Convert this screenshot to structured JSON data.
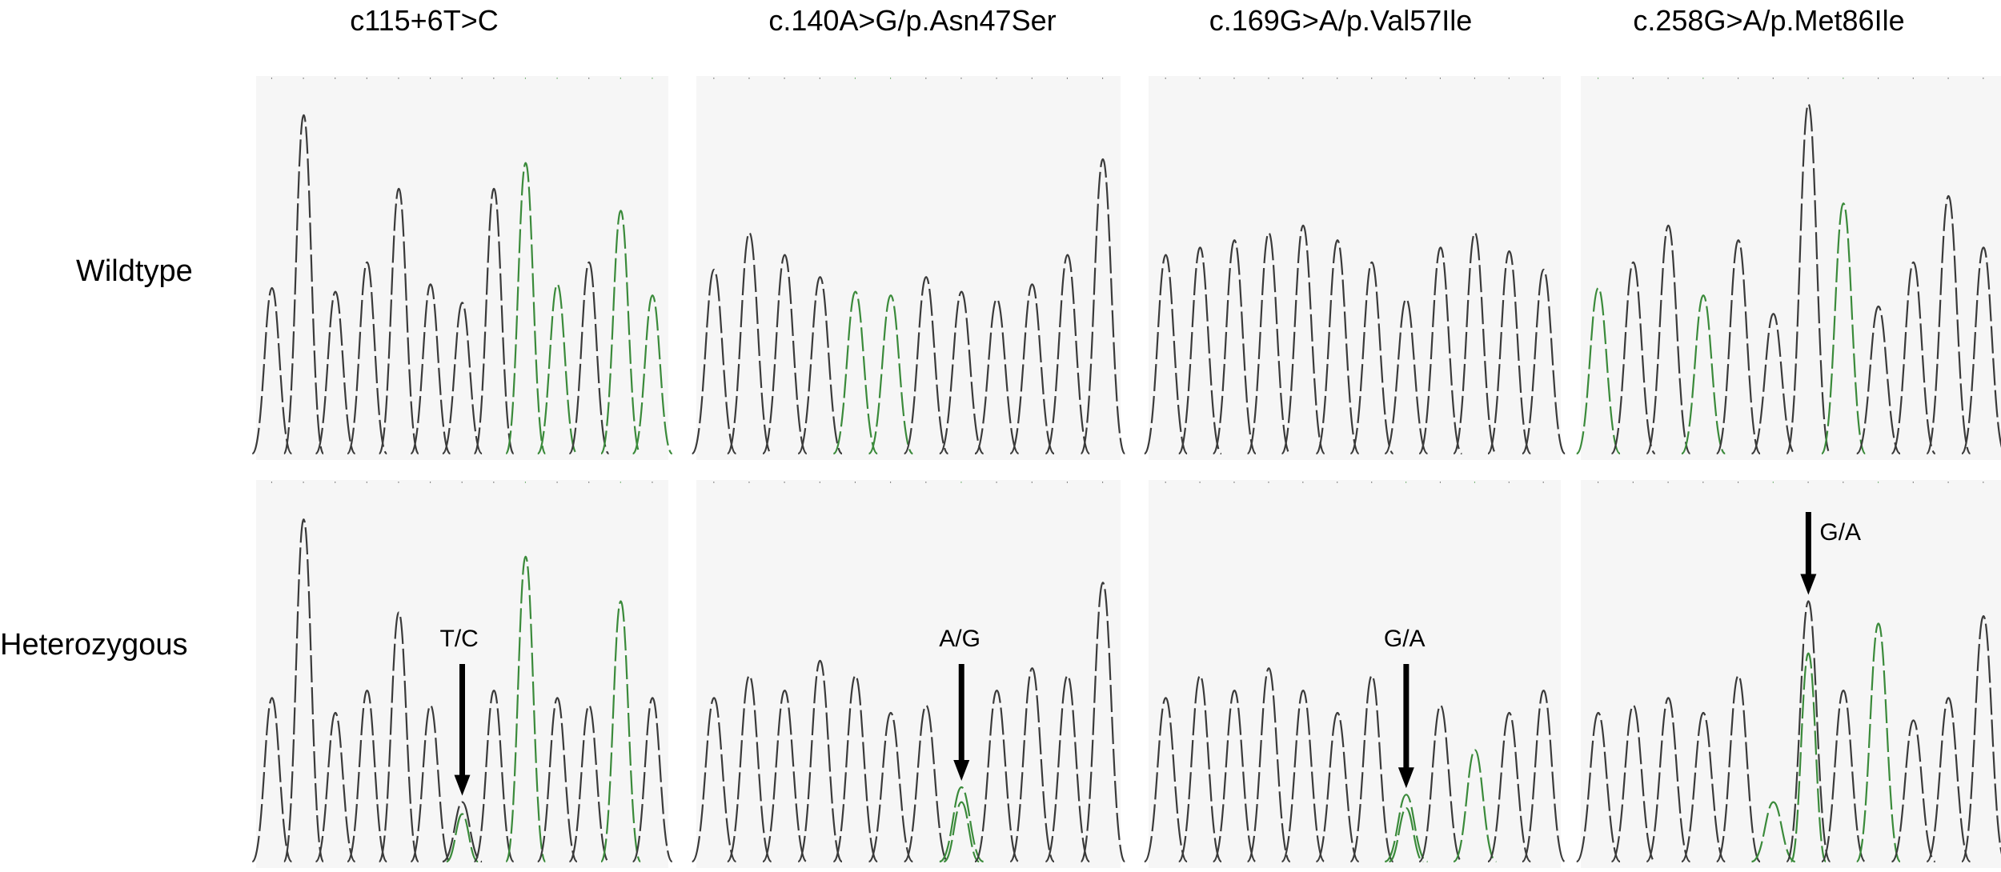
{
  "columns": [
    {
      "title": "c115+6T>C"
    },
    {
      "title": "c.140A>G/p.Asn47Ser"
    },
    {
      "title": "c.169G>A/p.Val57Ile"
    },
    {
      "title": "c.258G>A/p.Met86Ile"
    }
  ],
  "rows": [
    {
      "label": "Wildtype"
    },
    {
      "label": "Heterozygous"
    }
  ],
  "annotations": [
    {
      "column": 1,
      "row": 2,
      "label": "T/C"
    },
    {
      "column": 2,
      "row": 2,
      "label": "A/G"
    },
    {
      "column": 3,
      "row": 2,
      "label": "G/A"
    },
    {
      "column": 4,
      "row": 2,
      "label": "G/A"
    }
  ],
  "colors": {
    "trace_primary": "#3a3a3a",
    "trace_secondary": "#3a8a3a",
    "trace_tertiary": "#a04040",
    "arrow": "#000000"
  }
}
